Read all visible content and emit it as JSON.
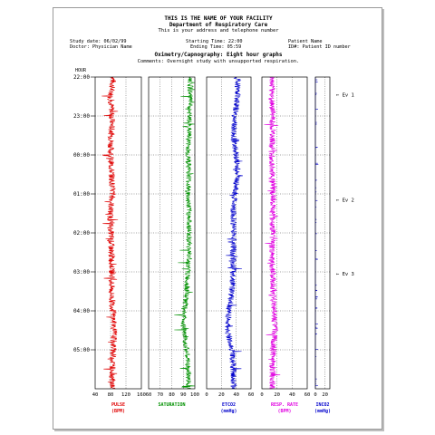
{
  "header": {
    "facility": "THIS IS THE NAME OF YOUR FACILITY",
    "department": "Department of Respiratory Care",
    "address": "This is your address and telephone number",
    "study_date": "Study date: 06/02/99",
    "starting_time": "Starting Time: 22:00",
    "patient_name": "Patient Name",
    "doctor": "Doctor: Physician Name",
    "ending_time": "Ending Time: 05:59",
    "patient_id": "ID#: Patient ID number",
    "chart_title": "Oximetry/Capnography: Eight hour graphs",
    "comments": "Comments: Overnight study with unsupported respiration."
  },
  "chart_data": {
    "type": "line",
    "hour_axis_label": "HOUR",
    "hours": [
      "22:00",
      "23:00",
      "00:00",
      "01:00",
      "02:00",
      "03:00",
      "04:00",
      "05:00"
    ],
    "time_range_hours": [
      0,
      8
    ],
    "events": [
      {
        "label": "Ev 1",
        "time_hours": 0.45
      },
      {
        "label": "Ev 2",
        "time_hours": 3.15
      },
      {
        "label": "Ev 3",
        "time_hours": 5.05
      }
    ],
    "panels": [
      {
        "label": "PULSE",
        "unit": "(BPM)",
        "color": "#e00000",
        "ticks": [
          "40",
          "80",
          "120",
          "160"
        ],
        "xlim": [
          40,
          160
        ],
        "trace": [
          [
            "22:00",
            88
          ],
          [
            "22:30",
            80
          ],
          [
            "23:00",
            84
          ],
          [
            "23:30",
            82
          ],
          [
            "00:00",
            80
          ],
          [
            "00:30",
            83
          ],
          [
            "01:00",
            85
          ],
          [
            "01:30",
            79
          ],
          [
            "02:00",
            81
          ],
          [
            "02:30",
            82
          ],
          [
            "03:00",
            84
          ],
          [
            "03:30",
            82
          ],
          [
            "04:00",
            86
          ],
          [
            "04:30",
            89
          ],
          [
            "05:00",
            87
          ],
          [
            "05:30",
            85
          ],
          [
            "05:59",
            84
          ]
        ]
      },
      {
        "label": "SATURATION",
        "unit": "",
        "color": "#009000",
        "ticks": [
          "60",
          "70",
          "80",
          "90",
          "100"
        ],
        "xlim": [
          60,
          100
        ],
        "trace": [
          [
            "22:00",
            96
          ],
          [
            "22:30",
            96
          ],
          [
            "23:00",
            95
          ],
          [
            "23:30",
            95
          ],
          [
            "00:00",
            94
          ],
          [
            "00:30",
            95
          ],
          [
            "01:00",
            94
          ],
          [
            "01:30",
            95
          ],
          [
            "02:00",
            95
          ],
          [
            "02:30",
            95
          ],
          [
            "03:00",
            94
          ],
          [
            "03:30",
            93
          ],
          [
            "04:00",
            91
          ],
          [
            "04:30",
            90
          ],
          [
            "05:00",
            93
          ],
          [
            "05:30",
            94
          ],
          [
            "05:59",
            95
          ]
        ]
      },
      {
        "label": "ETCO2",
        "unit": "(mmHg)",
        "color": "#0000cc",
        "ticks": [
          "0",
          "20",
          "40",
          "60"
        ],
        "xlim": [
          0,
          60
        ],
        "trace": [
          [
            "22:00",
            42
          ],
          [
            "22:30",
            42
          ],
          [
            "23:00",
            38
          ],
          [
            "23:30",
            36
          ],
          [
            "00:00",
            40
          ],
          [
            "00:30",
            42
          ],
          [
            "01:00",
            38
          ],
          [
            "01:30",
            36
          ],
          [
            "02:00",
            37
          ],
          [
            "02:30",
            36
          ],
          [
            "03:00",
            36
          ],
          [
            "03:30",
            34
          ],
          [
            "04:00",
            30
          ],
          [
            "04:30",
            28
          ],
          [
            "05:00",
            34
          ],
          [
            "05:30",
            36
          ],
          [
            "05:59",
            37
          ]
        ]
      },
      {
        "label": "RESP. RATE",
        "unit": "(BPM)",
        "color": "#e000e0",
        "ticks": [
          "0",
          "20",
          "40",
          "60"
        ],
        "xlim": [
          0,
          60
        ],
        "trace": [
          [
            "22:00",
            14
          ],
          [
            "22:30",
            13
          ],
          [
            "23:00",
            14
          ],
          [
            "23:30",
            14
          ],
          [
            "00:00",
            13
          ],
          [
            "00:30",
            14
          ],
          [
            "01:00",
            15
          ],
          [
            "01:30",
            14
          ],
          [
            "02:00",
            14
          ],
          [
            "02:30",
            13
          ],
          [
            "03:00",
            14
          ],
          [
            "03:30",
            15
          ],
          [
            "04:00",
            16
          ],
          [
            "04:30",
            17
          ],
          [
            "05:00",
            15
          ],
          [
            "05:30",
            14
          ],
          [
            "05:59",
            14
          ]
        ]
      },
      {
        "label": "INCO2",
        "unit": "(mmHg)",
        "color": "#0000cc",
        "ticks": [
          "0",
          "20"
        ],
        "xlim": [
          0,
          30
        ],
        "trace": [
          [
            "22:00",
            0
          ],
          [
            "23:00",
            0
          ],
          [
            "00:00",
            0
          ],
          [
            "01:00",
            0
          ],
          [
            "02:00",
            0
          ],
          [
            "03:00",
            0
          ],
          [
            "04:00",
            0
          ],
          [
            "05:00",
            0
          ],
          [
            "05:59",
            0
          ]
        ]
      }
    ]
  }
}
